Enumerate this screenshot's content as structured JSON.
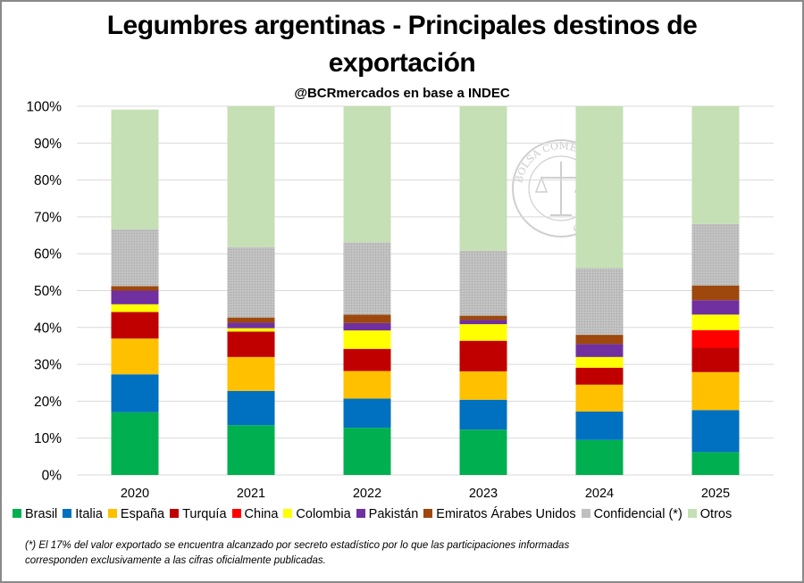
{
  "title_line1": "Legumbres argentinas - Principales destinos de",
  "title_line2": "exportación",
  "subtitle": "@BCRmercados en base a INDEC",
  "footnote_line1": "(*) El 17% del valor exportado se encuentra alcanzado por secreto estadístico por lo que las participaciones informadas",
  "footnote_line2": "corresponden exclusivamente a las cifras oficialmente publicadas.",
  "watermark_text": "BOLSA COMERCIO DE ROSARIO",
  "chart_data": {
    "type": "bar",
    "stacked": true,
    "categories": [
      "2020",
      "2021",
      "2022",
      "2023",
      "2024",
      "2025"
    ],
    "y_tick_labels": [
      "0%",
      "10%",
      "20%",
      "30%",
      "40%",
      "50%",
      "60%",
      "70%",
      "80%",
      "90%",
      "100%"
    ],
    "ylim": [
      0,
      100
    ],
    "legend_position": "bottom",
    "grid": true,
    "series": [
      {
        "name": "Brasil",
        "color": "#00b050",
        "values": [
          17,
          13.5,
          12.8,
          12.3,
          9.5,
          6.2
        ]
      },
      {
        "name": "Italia",
        "color": "#0070c0",
        "values": [
          10.3,
          9.3,
          7.9,
          8.1,
          7.7,
          11.4
        ]
      },
      {
        "name": "España",
        "color": "#ffc000",
        "values": [
          9.7,
          9.2,
          7.5,
          7.7,
          7.3,
          10.3
        ]
      },
      {
        "name": "Turquía",
        "color": "#c00000",
        "values": [
          7.2,
          6.9,
          6.0,
          8.3,
          4.6,
          6.6
        ]
      },
      {
        "name": "China",
        "color": "#ff0000",
        "values": [
          0.0,
          0.0,
          0.0,
          0.0,
          0.0,
          4.8
        ]
      },
      {
        "name": "Colombia",
        "color": "#ffff00",
        "values": [
          2.1,
          0.9,
          5.0,
          4.5,
          2.9,
          4.2
        ]
      },
      {
        "name": "Pakistán",
        "color": "#7030a0",
        "values": [
          3.7,
          1.5,
          2.0,
          1.1,
          3.5,
          3.9
        ]
      },
      {
        "name": "Emiratos Árabes Unidos",
        "color": "#9e480e",
        "values": [
          1.2,
          1.4,
          2.3,
          1.2,
          2.5,
          4.0
        ]
      },
      {
        "name": "Confidencial (*)",
        "color": "#bfbfbf",
        "values": [
          15.4,
          19.1,
          19.6,
          17.6,
          18.1,
          16.7
        ]
      },
      {
        "name": "Otros",
        "color": "#c5e0b4",
        "values": [
          32.5,
          38.2,
          36.9,
          39.2,
          43.9,
          31.9
        ]
      }
    ]
  }
}
